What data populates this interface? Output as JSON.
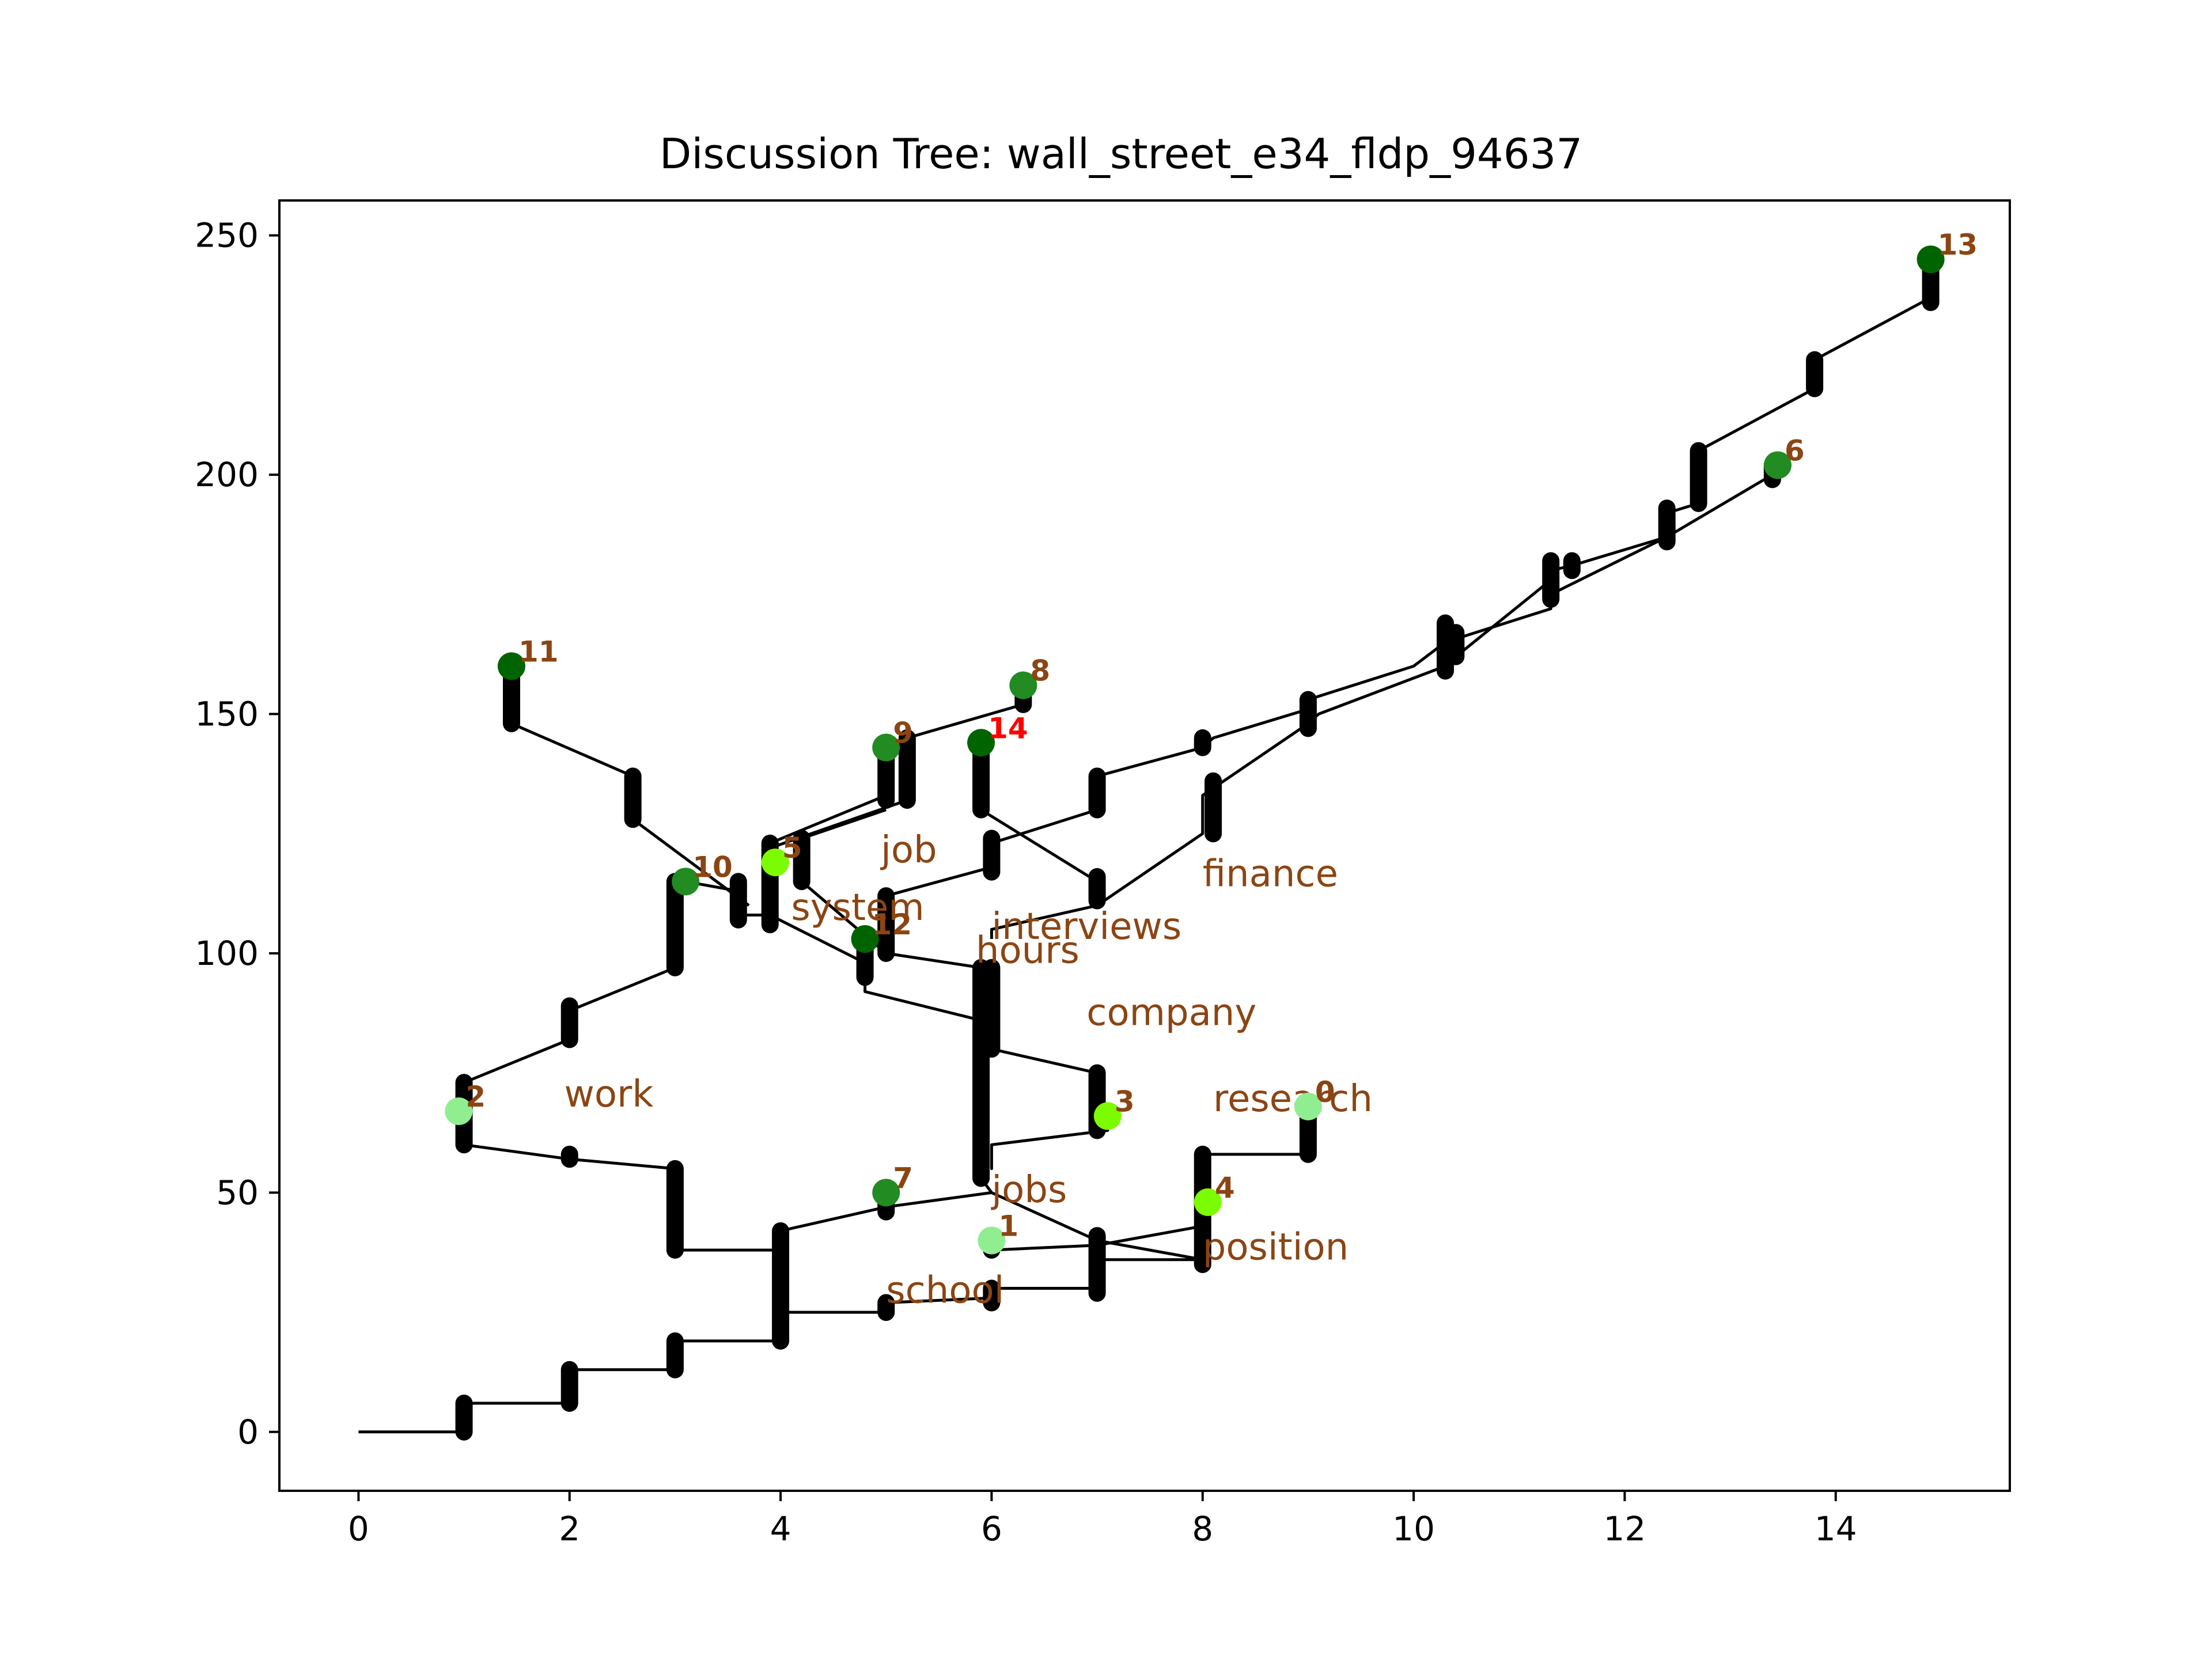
{
  "chart_data": {
    "type": "scatter",
    "title": "Discussion Tree: wall_street_e34_fldp_94637",
    "xlabel": "",
    "ylabel": "",
    "xlim": [
      -0.75,
      15.65
    ],
    "ylim": [
      -12.3,
      257.3
    ],
    "xticks": [
      "0",
      "2",
      "4",
      "6",
      "8",
      "10",
      "12",
      "14"
    ],
    "xtick_values": [
      0,
      2,
      4,
      6,
      8,
      10,
      12,
      14
    ],
    "yticks": [
      "0",
      "50",
      "100",
      "150",
      "200",
      "250"
    ],
    "ytick_values": [
      0,
      50,
      100,
      150,
      200,
      250
    ],
    "grid": false,
    "line_color": "#000000",
    "label_color": "#8b4513",
    "highlight_label_color": "#ff0000",
    "edges": [
      [
        [
          0,
          0
        ],
        [
          1,
          0
        ],
        [
          1,
          6
        ],
        [
          2,
          6
        ],
        [
          2,
          13
        ],
        [
          3,
          13
        ],
        [
          3,
          19
        ],
        [
          4,
          19
        ],
        [
          4,
          25
        ],
        [
          5,
          25
        ],
        [
          5,
          27
        ],
        [
          6,
          28
        ],
        [
          6,
          30
        ],
        [
          7,
          30
        ],
        [
          7,
          39
        ],
        [
          8,
          43
        ],
        [
          8,
          58
        ],
        [
          9,
          58
        ],
        [
          9,
          68
        ]
      ],
      [
        [
          4,
          25
        ],
        [
          4,
          38
        ],
        [
          3,
          38
        ],
        [
          3,
          55
        ],
        [
          2,
          57
        ],
        [
          1,
          60
        ],
        [
          1,
          73
        ],
        [
          2,
          82
        ],
        [
          2,
          88
        ],
        [
          3,
          97
        ],
        [
          3,
          115
        ]
      ],
      [
        [
          4,
          42
        ],
        [
          5,
          47
        ],
        [
          6,
          50
        ],
        [
          5.9,
          53
        ],
        [
          5.9,
          97
        ],
        [
          6,
          97
        ],
        [
          6,
          80
        ],
        [
          7,
          75
        ],
        [
          7,
          66
        ]
      ],
      [
        [
          6,
          50
        ],
        [
          7,
          40
        ],
        [
          8,
          36
        ],
        [
          7,
          36
        ],
        [
          7,
          39
        ],
        [
          6,
          38
        ],
        [
          6,
          40
        ]
      ],
      [
        [
          6,
          60
        ],
        [
          6,
          55
        ],
        [
          6,
          60
        ],
        [
          7.1,
          63
        ],
        [
          7.1,
          66
        ]
      ],
      [
        [
          5.9,
          86
        ],
        [
          4.8,
          92
        ],
        [
          4.8,
          103
        ],
        [
          4.8,
          98
        ],
        [
          3.9,
          108
        ],
        [
          3.6,
          108
        ],
        [
          3.6,
          113
        ],
        [
          3.1,
          115
        ]
      ],
      [
        [
          5.9,
          97
        ],
        [
          5,
          100
        ],
        [
          5,
          112
        ],
        [
          6,
          118
        ],
        [
          6,
          123
        ],
        [
          7,
          130
        ],
        [
          7,
          137
        ],
        [
          8,
          143
        ],
        [
          8.1,
          145
        ],
        [
          9,
          151
        ],
        [
          9,
          153
        ],
        [
          10,
          160
        ],
        [
          10.3,
          165
        ],
        [
          11.3,
          172
        ],
        [
          11.3,
          180
        ],
        [
          11.5,
          181
        ],
        [
          12.4,
          187
        ],
        [
          12.4,
          192
        ],
        [
          12.7,
          194
        ],
        [
          12.7,
          205
        ],
        [
          13.8,
          218
        ],
        [
          13.8,
          224
        ],
        [
          14.9,
          237
        ],
        [
          14.9,
          245
        ]
      ],
      [
        [
          3.9,
          108
        ],
        [
          3.9,
          113
        ],
        [
          3.9,
          123
        ],
        [
          5,
          133
        ],
        [
          5,
          143
        ]
      ],
      [
        [
          3.9,
          122
        ],
        [
          5.2,
          132
        ],
        [
          5.2,
          145
        ],
        [
          6.3,
          152
        ],
        [
          6.3,
          156
        ]
      ],
      [
        [
          5.9,
          144
        ],
        [
          5.9,
          130
        ],
        [
          7,
          115
        ],
        [
          7,
          110
        ],
        [
          6,
          105
        ],
        [
          6,
          103
        ]
      ],
      [
        [
          7,
          110
        ],
        [
          8,
          125
        ],
        [
          8,
          133
        ],
        [
          9,
          148
        ],
        [
          9.1,
          150
        ],
        [
          10.3,
          160
        ],
        [
          10.3,
          168
        ],
        [
          10.4,
          162
        ],
        [
          11.3,
          178
        ],
        [
          11.3,
          175
        ],
        [
          12.4,
          187
        ],
        [
          13.4,
          200
        ],
        [
          13.4,
          202
        ]
      ],
      [
        [
          3.7,
          110
        ],
        [
          2.6,
          128
        ],
        [
          2.6,
          137
        ],
        [
          1.45,
          148
        ],
        [
          1.45,
          160
        ]
      ],
      [
        [
          5,
          100
        ],
        [
          4.2,
          115
        ],
        [
          4.2,
          124
        ],
        [
          5,
          130
        ]
      ]
    ],
    "vertical_bars": [
      [
        1,
        0,
        6
      ],
      [
        2,
        6,
        13
      ],
      [
        3,
        13,
        19
      ],
      [
        4,
        19,
        42
      ],
      [
        5,
        25,
        27
      ],
      [
        6,
        27,
        30
      ],
      [
        7,
        29,
        41
      ],
      [
        8,
        35,
        58
      ],
      [
        9,
        58,
        68
      ],
      [
        3,
        38,
        55
      ],
      [
        2,
        57,
        58
      ],
      [
        1,
        60,
        73
      ],
      [
        2,
        82,
        89
      ],
      [
        3,
        97,
        115
      ],
      [
        5,
        46,
        49
      ],
      [
        5.9,
        53,
        97
      ],
      [
        6,
        80,
        97
      ],
      [
        7,
        63,
        75
      ],
      [
        6,
        38,
        40
      ],
      [
        4.8,
        95,
        103
      ],
      [
        3.6,
        107,
        115
      ],
      [
        3.9,
        106,
        123
      ],
      [
        4.2,
        115,
        124
      ],
      [
        5,
        100,
        112
      ],
      [
        6,
        117,
        124
      ],
      [
        7,
        130,
        137
      ],
      [
        8,
        143,
        145
      ],
      [
        8.1,
        125,
        136
      ],
      [
        9,
        147,
        153
      ],
      [
        10.3,
        159,
        169
      ],
      [
        10.4,
        162,
        167
      ],
      [
        11.3,
        174,
        182
      ],
      [
        11.5,
        180,
        182
      ],
      [
        12.4,
        186,
        193
      ],
      [
        12.7,
        194,
        205
      ],
      [
        13.8,
        218,
        224
      ],
      [
        14.9,
        236,
        245
      ],
      [
        13.4,
        199,
        202
      ],
      [
        5,
        132,
        143
      ],
      [
        5.2,
        132,
        145
      ],
      [
        6.3,
        152,
        156
      ],
      [
        5.9,
        130,
        144
      ],
      [
        7,
        111,
        116
      ],
      [
        2.6,
        128,
        137
      ],
      [
        1.45,
        148,
        160
      ]
    ],
    "leaves": [
      {
        "label": "0",
        "x": 9.0,
        "y": 68,
        "color": "#90ee90",
        "label_color": "#8b4513"
      },
      {
        "label": "1",
        "x": 6.0,
        "y": 40,
        "color": "#90ee90",
        "label_color": "#8b4513"
      },
      {
        "label": "2",
        "x": 0.95,
        "y": 67,
        "color": "#90ee90",
        "label_color": "#8b4513"
      },
      {
        "label": "3",
        "x": 7.1,
        "y": 66,
        "color": "#7cfc00",
        "label_color": "#8b4513"
      },
      {
        "label": "4",
        "x": 8.05,
        "y": 48,
        "color": "#7cfc00",
        "label_color": "#8b4513"
      },
      {
        "label": "5",
        "x": 3.95,
        "y": 119,
        "color": "#7cfc00",
        "label_color": "#8b4513"
      },
      {
        "label": "6",
        "x": 13.45,
        "y": 202,
        "color": "#228b22",
        "label_color": "#8b4513"
      },
      {
        "label": "7",
        "x": 5.0,
        "y": 50,
        "color": "#228b22",
        "label_color": "#8b4513"
      },
      {
        "label": "8",
        "x": 6.3,
        "y": 156,
        "color": "#228b22",
        "label_color": "#8b4513"
      },
      {
        "label": "9",
        "x": 5.0,
        "y": 143,
        "color": "#228b22",
        "label_color": "#8b4513"
      },
      {
        "label": "10",
        "x": 3.1,
        "y": 115,
        "color": "#228b22",
        "label_color": "#8b4513"
      },
      {
        "label": "11",
        "x": 1.45,
        "y": 160,
        "color": "#006400",
        "label_color": "#8b4513"
      },
      {
        "label": "12",
        "x": 4.8,
        "y": 103,
        "color": "#006400",
        "label_color": "#8b4513"
      },
      {
        "label": "13",
        "x": 14.9,
        "y": 245,
        "color": "#006400",
        "label_color": "#8b4513"
      },
      {
        "label": "14",
        "x": 5.9,
        "y": 144,
        "color": "#006400",
        "label_color": "#ff0000"
      }
    ],
    "words": [
      {
        "text": "work",
        "x": 1.95,
        "y": 68
      },
      {
        "text": "job",
        "x": 4.95,
        "y": 119
      },
      {
        "text": "system",
        "x": 4.1,
        "y": 107
      },
      {
        "text": "interviews",
        "x": 6.0,
        "y": 103
      },
      {
        "text": "hours",
        "x": 5.85,
        "y": 98
      },
      {
        "text": "finance",
        "x": 8.0,
        "y": 114
      },
      {
        "text": "company",
        "x": 6.9,
        "y": 85
      },
      {
        "text": "research",
        "x": 8.1,
        "y": 67
      },
      {
        "text": "jobs",
        "x": 6.0,
        "y": 48
      },
      {
        "text": "position",
        "x": 8.0,
        "y": 36
      },
      {
        "text": "school",
        "x": 5.0,
        "y": 27
      }
    ]
  }
}
